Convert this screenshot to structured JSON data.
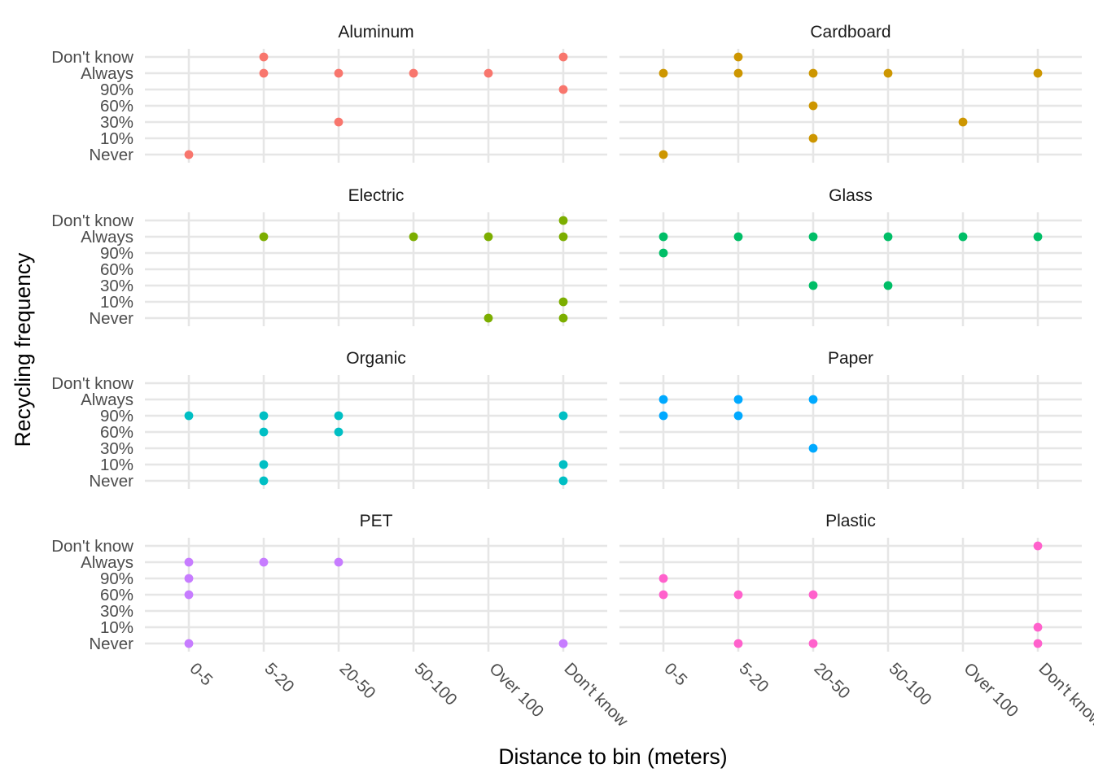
{
  "chart_data": {
    "type": "scatter",
    "xlabel": "Distance to bin (meters)",
    "ylabel": "Recycling frequency",
    "x_categories": [
      "0-5",
      "5-20",
      "20-50",
      "50-100",
      "Over 100",
      "Don't know"
    ],
    "y_categories": [
      "Never",
      "10%",
      "30%",
      "60%",
      "90%",
      "Always",
      "Don't know"
    ],
    "grid": true,
    "legend": "none",
    "facets": [
      {
        "name": "Aluminum",
        "color": "#F8766D",
        "points": [
          [
            "5-20",
            "Don't know"
          ],
          [
            "Don't know",
            "Don't know"
          ],
          [
            "5-20",
            "Always"
          ],
          [
            "20-50",
            "Always"
          ],
          [
            "50-100",
            "Always"
          ],
          [
            "Over 100",
            "Always"
          ],
          [
            "Don't know",
            "90%"
          ],
          [
            "20-50",
            "30%"
          ],
          [
            "0-5",
            "Never"
          ]
        ]
      },
      {
        "name": "Cardboard",
        "color": "#CD9600",
        "points": [
          [
            "5-20",
            "Don't know"
          ],
          [
            "0-5",
            "Always"
          ],
          [
            "5-20",
            "Always"
          ],
          [
            "20-50",
            "Always"
          ],
          [
            "50-100",
            "Always"
          ],
          [
            "Don't know",
            "Always"
          ],
          [
            "20-50",
            "60%"
          ],
          [
            "Over 100",
            "30%"
          ],
          [
            "20-50",
            "10%"
          ],
          [
            "0-5",
            "Never"
          ]
        ]
      },
      {
        "name": "Electric",
        "color": "#7CAE00",
        "points": [
          [
            "Don't know",
            "Don't know"
          ],
          [
            "5-20",
            "Always"
          ],
          [
            "50-100",
            "Always"
          ],
          [
            "Over 100",
            "Always"
          ],
          [
            "Don't know",
            "Always"
          ],
          [
            "Don't know",
            "10%"
          ],
          [
            "Over 100",
            "Never"
          ],
          [
            "Don't know",
            "Never"
          ]
        ]
      },
      {
        "name": "Glass",
        "color": "#00BE67",
        "points": [
          [
            "0-5",
            "Always"
          ],
          [
            "5-20",
            "Always"
          ],
          [
            "20-50",
            "Always"
          ],
          [
            "50-100",
            "Always"
          ],
          [
            "Over 100",
            "Always"
          ],
          [
            "Don't know",
            "Always"
          ],
          [
            "0-5",
            "90%"
          ],
          [
            "20-50",
            "30%"
          ],
          [
            "50-100",
            "30%"
          ]
        ]
      },
      {
        "name": "Organic",
        "color": "#00BFC4",
        "points": [
          [
            "0-5",
            "90%"
          ],
          [
            "5-20",
            "90%"
          ],
          [
            "20-50",
            "90%"
          ],
          [
            "Don't know",
            "90%"
          ],
          [
            "5-20",
            "60%"
          ],
          [
            "20-50",
            "60%"
          ],
          [
            "5-20",
            "10%"
          ],
          [
            "Don't know",
            "10%"
          ],
          [
            "5-20",
            "Never"
          ],
          [
            "Don't know",
            "Never"
          ]
        ]
      },
      {
        "name": "Paper",
        "color": "#00A9FF",
        "points": [
          [
            "0-5",
            "Always"
          ],
          [
            "5-20",
            "Always"
          ],
          [
            "20-50",
            "Always"
          ],
          [
            "0-5",
            "90%"
          ],
          [
            "5-20",
            "90%"
          ],
          [
            "20-50",
            "30%"
          ]
        ]
      },
      {
        "name": "PET",
        "color": "#C77CFF",
        "points": [
          [
            "0-5",
            "Always"
          ],
          [
            "5-20",
            "Always"
          ],
          [
            "20-50",
            "Always"
          ],
          [
            "0-5",
            "90%"
          ],
          [
            "0-5",
            "60%"
          ],
          [
            "0-5",
            "Never"
          ],
          [
            "Don't know",
            "Never"
          ]
        ]
      },
      {
        "name": "Plastic",
        "color": "#FF61CC",
        "points": [
          [
            "Don't know",
            "Don't know"
          ],
          [
            "0-5",
            "90%"
          ],
          [
            "0-5",
            "60%"
          ],
          [
            "5-20",
            "60%"
          ],
          [
            "20-50",
            "60%"
          ],
          [
            "Don't know",
            "10%"
          ],
          [
            "5-20",
            "Never"
          ],
          [
            "20-50",
            "Never"
          ],
          [
            "Don't know",
            "Never"
          ]
        ]
      }
    ]
  }
}
